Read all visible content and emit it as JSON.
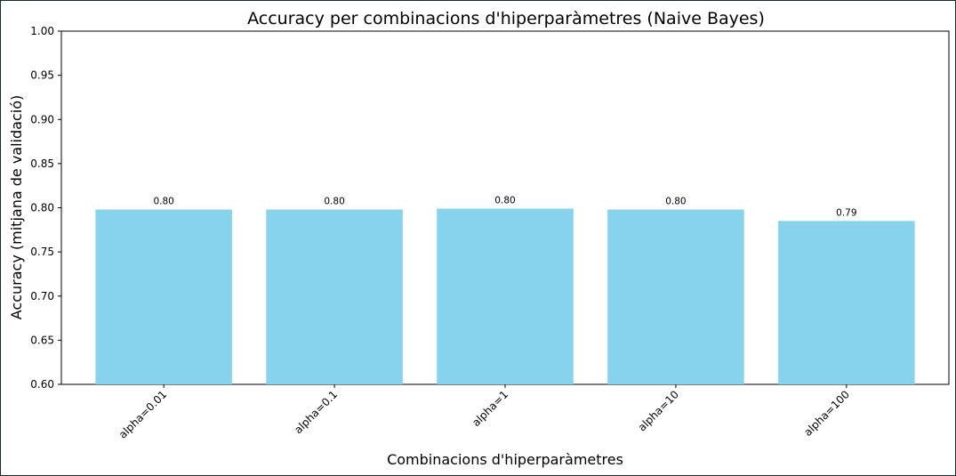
{
  "chart_data": {
    "type": "bar",
    "title": "Accuracy per combinacions d'hiperparàmetres (Naive Bayes)",
    "xlabel": "Combinacions d'hiperparàmetres",
    "ylabel": "Accuracy (mitjana de validació)",
    "categories": [
      "alpha=0.01",
      "alpha=0.1",
      "alpha=1",
      "alpha=10",
      "alpha=100"
    ],
    "values": [
      0.798,
      0.798,
      0.799,
      0.798,
      0.785
    ],
    "value_labels": [
      "0.80",
      "0.80",
      "0.80",
      "0.80",
      "0.79"
    ],
    "ylim": [
      0.6,
      1.0
    ],
    "yticks": [
      0.6,
      0.65,
      0.7,
      0.75,
      0.8,
      0.85,
      0.9,
      0.95,
      1.0
    ],
    "ytick_labels": [
      "0.60",
      "0.65",
      "0.70",
      "0.75",
      "0.80",
      "0.85",
      "0.90",
      "0.95",
      "1.00"
    ],
    "bar_color": "#87d3ed",
    "grid": false,
    "legend": false
  }
}
